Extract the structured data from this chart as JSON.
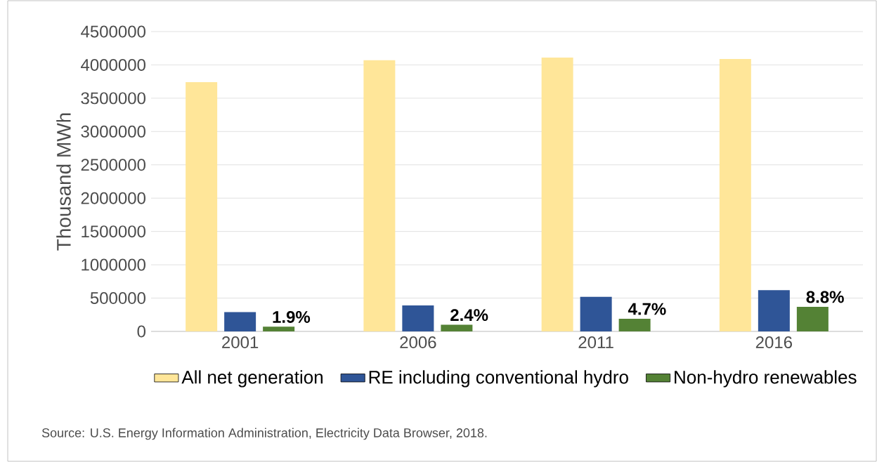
{
  "chart_data": {
    "type": "bar",
    "ylabel": "Thousand MWh",
    "categories": [
      "2001",
      "2006",
      "2011",
      "2016"
    ],
    "series": [
      {
        "name": "All net generation",
        "color": "#ffe699",
        "values": [
          3740000,
          4070000,
          4110000,
          4090000
        ]
      },
      {
        "name": "RE including conventional hydro",
        "color": "#2f5597",
        "values": [
          290000,
          390000,
          520000,
          620000
        ]
      },
      {
        "name": "Non-hydro renewables",
        "color": "#548235",
        "values": [
          70000,
          100000,
          190000,
          370000
        ]
      }
    ],
    "ylim": [
      0,
      4500000
    ],
    "yticks": [
      0,
      500000,
      1000000,
      1500000,
      2000000,
      2500000,
      3000000,
      3500000,
      4000000,
      4500000
    ],
    "grid": "y",
    "legend": "bottom",
    "annotations": [
      "1.9%",
      "2.4%",
      "4.7%",
      "8.8%",
      "Source: U.S. Energy Information Administration, Electricity Data Browser, 2018."
    ]
  }
}
